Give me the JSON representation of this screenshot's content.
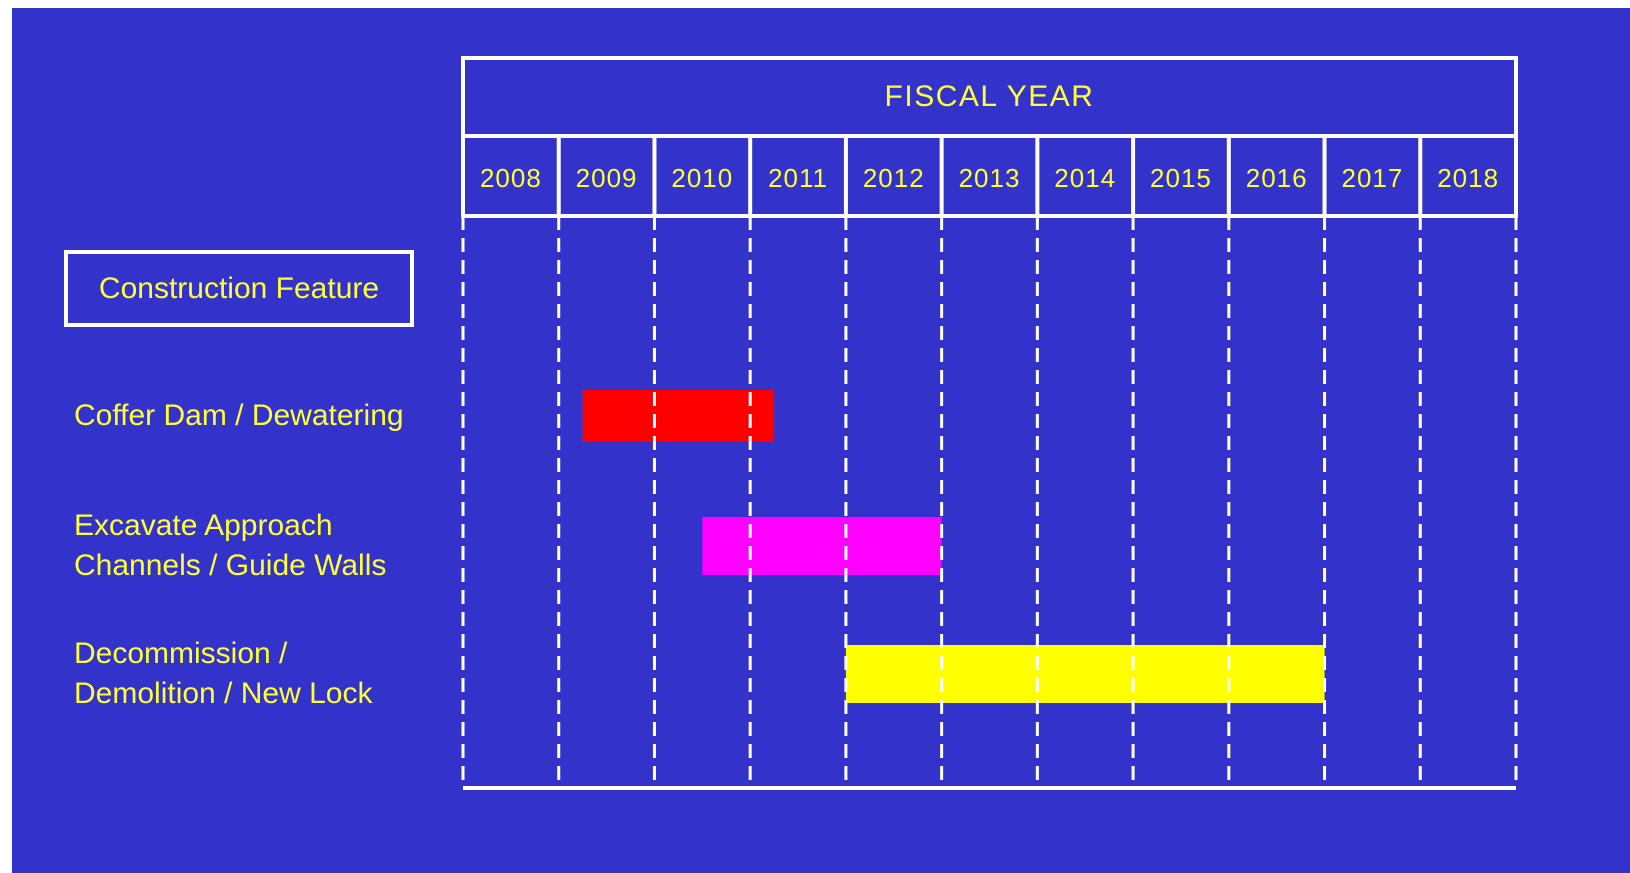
{
  "colors": {
    "background": "#3333cc",
    "text": "#ffff33",
    "grid": "#ffffff"
  },
  "header": {
    "feature_label": "Construction Feature"
  },
  "chart_data": {
    "type": "gantt",
    "title": "FISCAL YEAR",
    "years": [
      "2008",
      "2009",
      "2010",
      "2011",
      "2012",
      "2013",
      "2014",
      "2015",
      "2016",
      "2017",
      "2018"
    ],
    "tasks": [
      {
        "label": "Coffer Dam / Dewatering",
        "start": 2009.25,
        "end": 2011.25,
        "color": "#ff0000"
      },
      {
        "label": "Excavate Approach\nChannels / Guide Walls",
        "start": 2010.5,
        "end": 2013.0,
        "color": "#ff00ff"
      },
      {
        "label": "Decommission /\nDemolition / New Lock",
        "start": 2012.0,
        "end": 2017.0,
        "color": "#ffff00"
      }
    ]
  }
}
